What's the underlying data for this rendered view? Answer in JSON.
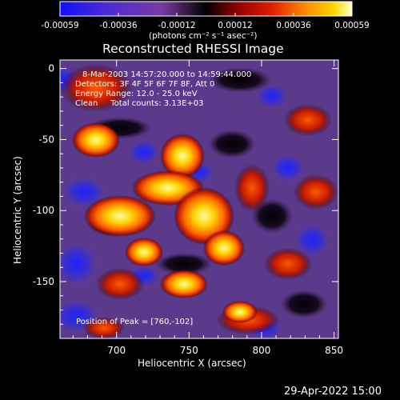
{
  "colorbar": {
    "ticks": [
      "-0.00059",
      "-0.00036",
      "-0.00012",
      "0.00012",
      "0.00036",
      "0.00059"
    ],
    "unit_label": "(photons cm⁻² s⁻¹ asec⁻²)",
    "colormap": [
      "#1010ff",
      "#5a28c8",
      "#7a3aa0",
      "#000000",
      "#6a0000",
      "#c80000",
      "#ff3c00",
      "#ff8c00",
      "#ffd400",
      "#ffffc8"
    ]
  },
  "title": "Reconstructed RHESSI Image",
  "info": {
    "line1": "8-Mar-2003 14:57:20.000 to 14:59:44.000",
    "line2": "Detectors: 3F 4F 5F 6F 7F 8F, Att 0",
    "line3": "Energy Range: 12.0 - 25.0 keV",
    "line4": "Clean     Total counts: 3.13E+03"
  },
  "peak_text": "Position of Peak = [760,-102]",
  "timestamp": "29-Apr-2022 15:00",
  "chart_data": {
    "type": "heatmap",
    "title": "Reconstructed RHESSI Image",
    "xlabel": "Heliocentric X (arcsec)",
    "ylabel": "Heliocentric Y (arcsec)",
    "xlim": [
      661,
      853
    ],
    "ylim": [
      -190,
      6
    ],
    "x_ticks": [
      700,
      750,
      800,
      850
    ],
    "y_ticks": [
      0,
      -50,
      -100,
      -150
    ],
    "x_tick_labels": [
      "700",
      "750",
      "800",
      "850"
    ],
    "y_tick_labels": [
      "0",
      "-50",
      "-100",
      "-150"
    ],
    "colorbar_range": [
      -0.00059,
      0.00059
    ],
    "peak_position": [
      760,
      -102
    ],
    "grid": false
  }
}
